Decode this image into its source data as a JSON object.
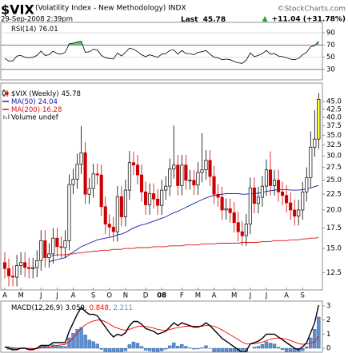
{
  "header": {
    "symbol": "$VIX",
    "description": "(Volatility Index - New Methodology) INDX",
    "source": "©StockCharts.com",
    "date": "29-Sep-2008 2:39pm",
    "last_label": "Last",
    "change": "+11.04 (+31.78%)"
  },
  "chart_data": [
    {
      "type": "line",
      "title": "RSI(14)",
      "color": "#000000",
      "values": [
        48,
        44,
        44,
        52,
        53,
        50,
        49,
        50,
        53,
        60,
        53,
        54,
        60,
        56,
        55,
        58,
        72,
        73,
        75,
        76,
        58,
        59,
        63,
        62,
        53,
        49,
        48,
        47,
        57,
        52,
        58,
        65,
        63,
        59,
        54,
        51,
        54,
        52,
        50,
        55,
        56,
        61,
        62,
        55,
        61,
        56,
        56,
        54,
        58,
        59,
        61,
        55,
        50,
        49,
        46,
        47,
        46,
        43,
        41,
        40,
        45,
        57,
        51,
        53,
        56,
        61,
        55,
        56,
        52,
        51,
        49,
        47,
        46,
        48,
        54,
        58,
        67,
        69,
        76.01
      ],
      "ylim": [
        13,
        107
      ],
      "yticks": [
        90,
        70,
        50,
        30
      ],
      "grid": true,
      "levels": [
        70,
        30
      ],
      "level_colors": [
        "#66cc66",
        "#ff6666"
      ]
    },
    {
      "type": "candlestick",
      "title": "$VIX (Weekly)",
      "log_scale": true,
      "categories": [
        "A",
        null,
        null,
        null,
        "M",
        null,
        null,
        null,
        null,
        "J",
        null,
        null,
        null,
        "J",
        null,
        null,
        null,
        "A",
        null,
        null,
        null,
        null,
        "S",
        null,
        null,
        null,
        "O",
        null,
        null,
        null,
        "N",
        null,
        null,
        null,
        null,
        "D",
        null,
        null,
        null,
        "08",
        null,
        null,
        null,
        null,
        "F",
        null,
        null,
        null,
        "M",
        null,
        null,
        null,
        "A",
        null,
        null,
        null,
        null,
        "M",
        null,
        null,
        null,
        "J",
        null,
        null,
        null,
        "J",
        null,
        null,
        null,
        null,
        "A",
        null,
        null,
        null,
        "S",
        null,
        null,
        null,
        null
      ],
      "open": [
        13.5,
        12.9,
        12.2,
        12.1,
        13.2,
        13.5,
        13.0,
        12.9,
        13.0,
        13.7,
        15.9,
        14.0,
        14.4,
        16.2,
        15.2,
        15.1,
        15.9,
        24.2,
        25.2,
        28.2,
        30.7,
        22.5,
        23.5,
        26.2,
        26.0,
        20.5,
        18.0,
        17.6,
        17.0,
        22.1,
        19.0,
        23.2,
        28.5,
        28.0,
        26.0,
        22.9,
        20.8,
        22.6,
        21.7,
        20.7,
        23.2,
        23.9,
        27.2,
        28.0,
        24.0,
        28.0,
        25.0,
        25.0,
        24.1,
        26.5,
        27.0,
        29.0,
        25.7,
        22.5,
        22.0,
        20.0,
        20.2,
        19.6,
        18.2,
        17.0,
        16.5,
        18.0,
        23.6,
        21.0,
        22.0,
        23.9,
        27.0,
        24.0,
        25.0,
        22.9,
        22.3,
        21.1,
        20.0,
        19.1,
        20.0,
        22.9,
        25.5,
        32.0,
        34.0
      ],
      "high": [
        14.6,
        13.9,
        13.2,
        14.3,
        14.6,
        14.6,
        14.0,
        14.0,
        14.8,
        17.2,
        17.2,
        15.6,
        17.5,
        17.5,
        16.4,
        17.2,
        26.1,
        27.2,
        30.5,
        37.5,
        33.2,
        25.4,
        28.3,
        28.3,
        28.1,
        22.1,
        19.4,
        19.0,
        23.9,
        23.9,
        25.1,
        31.1,
        30.8,
        30.2,
        28.1,
        24.7,
        24.4,
        24.4,
        23.4,
        25.1,
        25.8,
        29.4,
        37.6,
        30.2,
        30.2,
        30.2,
        27.0,
        27.0,
        28.6,
        35.6,
        31.3,
        31.3,
        27.8,
        24.3,
        23.8,
        21.8,
        21.8,
        21.2,
        19.7,
        18.4,
        19.4,
        25.5,
        25.5,
        23.8,
        25.8,
        29.2,
        31.0,
        27.0,
        27.0,
        24.7,
        24.1,
        22.8,
        21.6,
        21.6,
        24.7,
        27.5,
        36.0,
        42.2,
        48.0
      ],
      "low": [
        12.0,
        11.3,
        11.3,
        11.3,
        12.3,
        12.1,
        12.0,
        12.0,
        12.1,
        12.7,
        13.0,
        13.0,
        13.4,
        14.1,
        14.0,
        14.0,
        14.8,
        22.5,
        23.4,
        26.2,
        20.9,
        20.9,
        21.9,
        24.2,
        19.1,
        16.7,
        16.4,
        15.8,
        15.8,
        17.7,
        17.7,
        21.6,
        26.0,
        24.2,
        21.3,
        19.3,
        19.3,
        20.2,
        19.3,
        19.3,
        21.6,
        22.2,
        25.3,
        22.3,
        22.3,
        23.3,
        23.3,
        22.4,
        22.4,
        24.6,
        25.1,
        23.9,
        20.9,
        20.5,
        18.6,
        18.6,
        18.2,
        16.9,
        15.8,
        15.3,
        15.3,
        16.7,
        19.5,
        19.5,
        20.5,
        22.2,
        22.3,
        22.3,
        21.3,
        20.7,
        19.6,
        18.6,
        17.8,
        17.8,
        18.6,
        21.3,
        23.7,
        29.8,
        31.6
      ],
      "close": [
        12.9,
        12.2,
        12.1,
        13.2,
        13.5,
        13.0,
        12.9,
        13.0,
        13.7,
        15.9,
        14.0,
        14.4,
        16.2,
        15.2,
        15.1,
        15.9,
        24.2,
        25.2,
        28.2,
        30.7,
        22.5,
        23.5,
        26.2,
        26.0,
        20.5,
        18.0,
        17.6,
        17.0,
        22.1,
        19.0,
        23.2,
        28.5,
        28.0,
        26.0,
        22.9,
        20.8,
        22.6,
        21.7,
        20.7,
        23.2,
        23.9,
        27.2,
        28.0,
        24.0,
        28.0,
        25.0,
        25.0,
        24.1,
        26.5,
        27.0,
        29.0,
        25.7,
        22.5,
        22.0,
        20.0,
        20.2,
        19.6,
        18.2,
        17.0,
        16.5,
        18.0,
        23.6,
        21.0,
        22.0,
        23.9,
        27.0,
        24.0,
        25.0,
        22.9,
        22.3,
        21.1,
        20.0,
        19.1,
        20.0,
        22.9,
        25.5,
        32.0,
        34.0,
        45.78
      ],
      "up_color": "#000000",
      "down_color": "#cc0000",
      "last_color": "#ffff33",
      "series": [
        {
          "name": "MA(50)",
          "color": "#1a1aa6",
          "values": [
            null,
            null,
            null,
            null,
            null,
            null,
            null,
            null,
            null,
            null,
            null,
            13.6,
            13.7,
            13.8,
            13.9,
            14.0,
            14.3,
            14.6,
            14.9,
            15.2,
            15.4,
            15.6,
            15.8,
            16.0,
            16.1,
            16.2,
            16.3,
            16.4,
            16.6,
            16.7,
            16.9,
            17.2,
            17.5,
            17.7,
            17.9,
            18.0,
            18.2,
            18.4,
            18.6,
            18.8,
            19.0,
            19.3,
            19.6,
            19.8,
            20.1,
            20.4,
            20.7,
            21.0,
            21.3,
            21.6,
            21.9,
            22.1,
            22.3,
            22.4,
            22.5,
            22.6,
            22.6,
            22.6,
            22.6,
            22.5,
            22.5,
            22.6,
            22.6,
            22.7,
            22.8,
            23.0,
            23.1,
            23.2,
            23.3,
            23.3,
            23.3,
            23.2,
            23.2,
            23.2,
            23.3,
            23.4,
            23.6,
            23.8,
            24.04
          ]
        },
        {
          "name": "MA(200)",
          "color": "#dd1111",
          "values": [
            null,
            null,
            null,
            null,
            null,
            null,
            null,
            null,
            null,
            null,
            null,
            14.2,
            14.2,
            14.3,
            14.3,
            14.3,
            14.4,
            14.4,
            14.5,
            14.5,
            14.6,
            14.6,
            14.7,
            14.7,
            14.8,
            14.8,
            14.8,
            14.9,
            14.9,
            14.9,
            15.0,
            15.0,
            15.0,
            15.1,
            15.1,
            15.1,
            15.1,
            15.2,
            15.2,
            15.2,
            15.2,
            15.3,
            15.3,
            15.3,
            15.3,
            15.4,
            15.4,
            15.4,
            15.4,
            15.5,
            15.5,
            15.5,
            15.5,
            15.6,
            15.6,
            15.6,
            15.6,
            15.6,
            15.6,
            15.7,
            15.7,
            15.7,
            15.7,
            15.7,
            15.8,
            15.8,
            15.8,
            15.9,
            15.9,
            15.9,
            15.9,
            16.0,
            16.0,
            16.0,
            16.1,
            16.1,
            16.2,
            16.2,
            16.28
          ]
        }
      ],
      "volume_label": "Volume undef",
      "ylim": [
        11,
        51.7
      ],
      "yticks": [
        {
          "value": 45,
          "label": "45.0"
        },
        42.5,
        {
          "value": 40,
          "label": "40.0"
        },
        37.5,
        {
          "value": 35,
          "label": "35.0"
        },
        32.5,
        {
          "value": 30,
          "label": "30.0"
        },
        27.5,
        {
          "value": 25,
          "label": "25.0"
        },
        22.5,
        {
          "value": 20,
          "label": "20.0"
        },
        17.5,
        {
          "value": 15,
          "label": "15.0"
        },
        12.5
      ]
    },
    {
      "type": "macd",
      "title": "MACD(12,26,9)",
      "series": [
        {
          "color": "#000000",
          "values": [
            0.1,
            0.0,
            -0.1,
            -0.1,
            0.0,
            0.0,
            -0.1,
            -0.1,
            0.0,
            0.2,
            0.2,
            0.2,
            0.4,
            0.4,
            0.4,
            0.4,
            1.2,
            1.8,
            2.4,
            2.9,
            2.6,
            2.4,
            2.4,
            2.3,
            1.9,
            1.5,
            1.1,
            0.8,
            1.0,
            0.9,
            1.1,
            1.6,
            1.9,
            1.9,
            1.7,
            1.4,
            1.3,
            1.2,
            1.0,
            1.1,
            1.2,
            1.5,
            1.8,
            1.6,
            1.8,
            1.7,
            1.6,
            1.5,
            1.5,
            1.6,
            1.8,
            1.6,
            1.3,
            1.0,
            0.7,
            0.5,
            0.3,
            0.1,
            -0.1,
            -0.3,
            -0.2,
            0.3,
            0.4,
            0.5,
            0.7,
            1.0,
            1.0,
            1.0,
            0.8,
            0.6,
            0.4,
            0.2,
            0.0,
            -0.1,
            0.1,
            0.4,
            1.1,
            1.8,
            3.059
          ]
        },
        {
          "color": "#ff0000",
          "values": [
            0.1,
            0.08,
            0.04,
            0.01,
            0.01,
            0.01,
            -0.01,
            -0.03,
            -0.02,
            0.02,
            0.06,
            0.09,
            0.15,
            0.2,
            0.24,
            0.27,
            0.46,
            0.73,
            1.06,
            1.43,
            1.66,
            1.81,
            1.93,
            2.0,
            1.98,
            1.88,
            1.72,
            1.54,
            1.43,
            1.32,
            1.28,
            1.34,
            1.45,
            1.54,
            1.57,
            1.54,
            1.49,
            1.43,
            1.34,
            1.29,
            1.27,
            1.32,
            1.41,
            1.45,
            1.52,
            1.56,
            1.57,
            1.56,
            1.55,
            1.56,
            1.61,
            1.61,
            1.55,
            1.44,
            1.29,
            1.13,
            0.96,
            0.79,
            0.61,
            0.43,
            0.3,
            0.3,
            0.32,
            0.36,
            0.43,
            0.54,
            0.63,
            0.7,
            0.72,
            0.7,
            0.64,
            0.55,
            0.44,
            0.33,
            0.28,
            0.3,
            0.36,
            0.45,
            0.848
          ]
        },
        {
          "color": "#5b8fd0",
          "values": [
            0.0,
            -0.08,
            -0.14,
            -0.11,
            -0.01,
            -0.01,
            -0.09,
            -0.07,
            0.02,
            0.18,
            0.14,
            0.11,
            0.25,
            0.2,
            0.16,
            0.13,
            0.74,
            1.07,
            1.34,
            1.47,
            0.94,
            0.59,
            0.47,
            0.3,
            -0.08,
            -0.38,
            -0.62,
            -0.74,
            -0.43,
            -0.42,
            -0.18,
            0.26,
            0.45,
            0.36,
            0.13,
            -0.14,
            -0.19,
            -0.23,
            -0.34,
            -0.19,
            -0.07,
            0.18,
            0.39,
            0.15,
            0.28,
            0.14,
            0.03,
            -0.06,
            -0.05,
            0.04,
            0.19,
            -0.01,
            -0.25,
            -0.44,
            -0.59,
            -0.63,
            -0.66,
            -0.69,
            -0.71,
            -0.73,
            -0.5,
            0.0,
            0.08,
            0.14,
            0.27,
            0.46,
            0.37,
            0.3,
            0.08,
            -0.1,
            -0.24,
            -0.35,
            -0.44,
            -0.43,
            -0.18,
            0.1,
            0.74,
            1.35,
            2.211
          ]
        }
      ],
      "value_labels": [
        "3.059,",
        "0.848,",
        "2.211"
      ],
      "ylim": [
        -0.28,
        3.34
      ],
      "yticks": [
        3,
        2,
        1,
        0
      ]
    }
  ]
}
